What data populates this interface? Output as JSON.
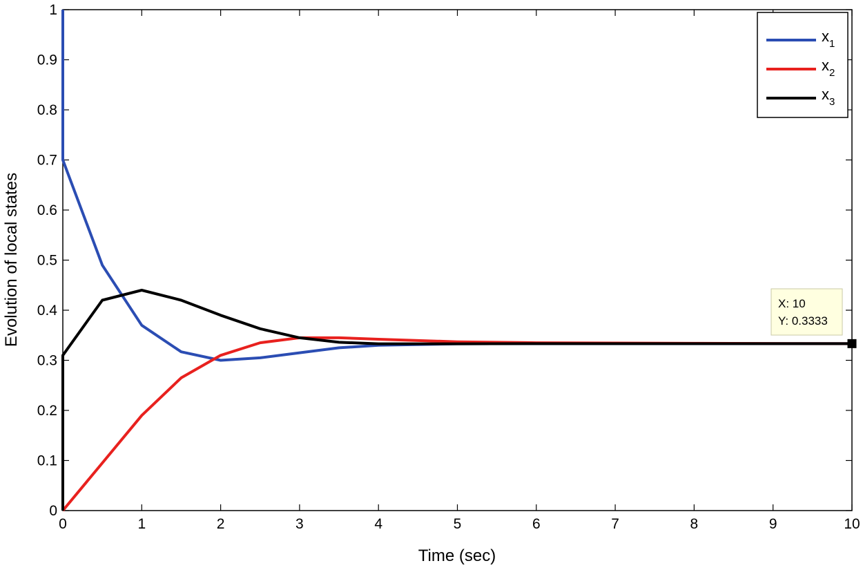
{
  "chart_data": {
    "type": "line",
    "title": "",
    "xlabel": "Time (sec)",
    "ylabel": "Evolution of local states",
    "xlim": [
      0,
      10
    ],
    "ylim": [
      0,
      1
    ],
    "xticks": [
      "0",
      "1",
      "2",
      "3",
      "4",
      "5",
      "6",
      "7",
      "8",
      "9",
      "10"
    ],
    "yticks": [
      "0",
      "0.1",
      "0.2",
      "0.3",
      "0.4",
      "0.5",
      "0.6",
      "0.7",
      "0.8",
      "0.9",
      "1"
    ],
    "grid": false,
    "legend_position": "top-right",
    "series": [
      {
        "name": "x",
        "subscript": "1",
        "color": "#2b4db3",
        "x": [
          0,
          0,
          0.5,
          1,
          1.5,
          2,
          2.5,
          3,
          3.5,
          4,
          5,
          6,
          8,
          10
        ],
        "y": [
          1,
          0.7,
          0.49,
          0.37,
          0.317,
          0.3,
          0.305,
          0.315,
          0.325,
          0.33,
          0.333,
          0.3333,
          0.3333,
          0.3333
        ]
      },
      {
        "name": "x",
        "subscript": "2",
        "color": "#e8211e",
        "x": [
          0,
          0.5,
          1,
          1.5,
          2,
          2.5,
          3,
          3.5,
          4,
          5,
          6,
          8,
          10
        ],
        "y": [
          0,
          0.095,
          0.19,
          0.265,
          0.31,
          0.335,
          0.345,
          0.345,
          0.342,
          0.337,
          0.335,
          0.334,
          0.3333
        ]
      },
      {
        "name": "x",
        "subscript": "3",
        "color": "#000000",
        "x": [
          0,
          0,
          0.5,
          1,
          1.5,
          2,
          2.5,
          3,
          3.5,
          4,
          5,
          6,
          8,
          10
        ],
        "y": [
          0,
          0.31,
          0.42,
          0.44,
          0.42,
          0.39,
          0.363,
          0.345,
          0.336,
          0.333,
          0.333,
          0.3333,
          0.3333,
          0.3333
        ]
      }
    ],
    "datatip": {
      "x": 10,
      "y": 0.3333,
      "x_text": "X: 10",
      "y_text": "Y: 0.3333"
    }
  }
}
